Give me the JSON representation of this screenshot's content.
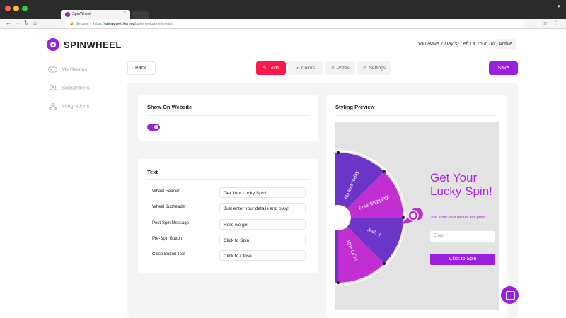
{
  "browser": {
    "tab_title": "SpinWheel",
    "tab_close": "×",
    "secure_label": "Secure",
    "url_scheme": "https://",
    "url_host": "spinwheel.kamozi.io",
    "url_path": "/wheelgame/create"
  },
  "header": {
    "brand": "SPINWHEEL",
    "trial_text": "You Have 7 Day(s) Left Of Your Trial",
    "status_badge": "Active"
  },
  "sidebar": {
    "items": [
      {
        "label": "My Games",
        "icon": "gamepad-icon"
      },
      {
        "label": "Subscribers",
        "icon": "users-icon"
      },
      {
        "label": "Integrations",
        "icon": "integrations-icon"
      }
    ]
  },
  "toolbar": {
    "back_label": "Back",
    "steps": [
      {
        "label": "Texts",
        "icon": "pen-icon",
        "active": true
      },
      {
        "label": "Colors",
        "icon": "palette-icon",
        "active": false
      },
      {
        "label": "Prizes",
        "icon": "bulb-icon",
        "active": false
      },
      {
        "label": "Settings",
        "icon": "gear-icon",
        "active": false
      }
    ],
    "save_label": "Save"
  },
  "show_on_website": {
    "title": "Show On Website",
    "enabled": true
  },
  "text_settings": {
    "title": "Text",
    "rows": [
      {
        "label": "Wheel Header",
        "value": "Get Your Lucky Spin!"
      },
      {
        "label": "Wheel Subheader",
        "value": "Just enter your details and play!"
      },
      {
        "label": "Post-Spin Message",
        "value": "Here we go!"
      },
      {
        "label": "Pre-Spin Button",
        "value": "Click to Spin"
      },
      {
        "label": "Close Button Text",
        "value": "Click to Close"
      }
    ]
  },
  "preview": {
    "title": "Styling Preview",
    "segments": [
      "No luck today",
      "Free Shipping!",
      "Awh :(",
      "10% OFF!"
    ],
    "colors": {
      "purple": "#9a1fe0",
      "magenta": "#c12ed2",
      "dark_purple": "#6b35c7"
    },
    "header_text": "Get Your Lucky Spin!",
    "sub_text": "Just enter your details and play!",
    "email_placeholder": "Email",
    "spin_button": "Click to Spin"
  },
  "colors": {
    "accent": "#9a1fe0",
    "active_step": "#ff1749"
  }
}
